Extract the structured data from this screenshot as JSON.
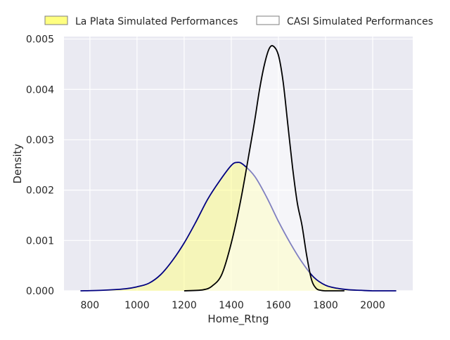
{
  "chart_data": {
    "type": "area",
    "title": "",
    "xlabel": "Home_Rtng",
    "ylabel": "Density",
    "xlim": [
      690,
      2170
    ],
    "ylim": [
      0,
      0.00505
    ],
    "x_ticks": [
      800,
      1000,
      1200,
      1400,
      1600,
      1800,
      2000
    ],
    "x_tick_labels": [
      "800",
      "1000",
      "1200",
      "1400",
      "1600",
      "1800",
      "2000"
    ],
    "y_ticks": [
      0,
      0.001,
      0.002,
      0.003,
      0.004,
      0.005
    ],
    "y_tick_labels": [
      "0.000",
      "0.001",
      "0.002",
      "0.003",
      "0.004",
      "0.005"
    ],
    "grid": true,
    "legend_placement": "top, outside plot",
    "colors": {
      "plot_background": "#eaeaf2",
      "grid": "#ffffff",
      "la_plata_fill": "#ffff80",
      "la_plata_line": "#000080",
      "casi_fill": "#ffffff",
      "casi_line": "#000000",
      "legend_edge": "#7f7f7f"
    },
    "series": [
      {
        "name": "La Plata Simulated Performances",
        "fill": "#ffff80",
        "fill_opacity": 0.5,
        "line": "#000080",
        "x": [
          760,
          850,
          950,
          1000,
          1050,
          1100,
          1150,
          1200,
          1250,
          1300,
          1350,
          1400,
          1425,
          1450,
          1500,
          1550,
          1600,
          1650,
          1700,
          1750,
          1800,
          1850,
          1900,
          1950,
          2000,
          2100
        ],
        "y": [
          0,
          1e-05,
          4e-05,
          8e-05,
          0.00015,
          0.00032,
          0.0006,
          0.00095,
          0.00137,
          0.00182,
          0.00218,
          0.00249,
          0.00255,
          0.00251,
          0.00227,
          0.00186,
          0.00138,
          0.00095,
          0.00057,
          0.00027,
          0.00011,
          5e-05,
          2e-05,
          1e-05,
          0,
          0
        ]
      },
      {
        "name": "CASI Simulated Performances",
        "fill": "#ffffff",
        "fill_opacity": 0.5,
        "line": "#000000",
        "x": [
          1200,
          1280,
          1320,
          1360,
          1400,
          1440,
          1480,
          1500,
          1520,
          1540,
          1560,
          1578,
          1600,
          1620,
          1640,
          1660,
          1680,
          1700,
          1720,
          1740,
          1760,
          1780,
          1800,
          1840,
          1880
        ],
        "y": [
          0,
          2e-05,
          0.0001,
          0.00033,
          0.00095,
          0.0018,
          0.00285,
          0.0034,
          0.004,
          0.00448,
          0.0048,
          0.00486,
          0.00468,
          0.00415,
          0.0033,
          0.00245,
          0.00175,
          0.0013,
          0.0007,
          0.00023,
          5e-05,
          1e-05,
          0,
          0,
          0
        ]
      }
    ]
  }
}
